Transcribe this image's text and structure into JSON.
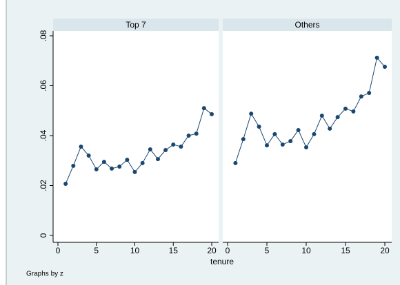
{
  "chart_data": [
    {
      "type": "line",
      "title": "Top 7",
      "color": "#1a476f",
      "x": [
        1,
        2,
        3,
        4,
        5,
        6,
        7,
        8,
        9,
        10,
        11,
        12,
        13,
        14,
        15,
        16,
        17,
        18,
        19,
        20
      ],
      "values": [
        0.0207,
        0.0279,
        0.0356,
        0.032,
        0.0265,
        0.0295,
        0.0268,
        0.0276,
        0.0303,
        0.0254,
        0.029,
        0.0345,
        0.0306,
        0.0342,
        0.0364,
        0.0356,
        0.04,
        0.0408,
        0.051,
        0.0486
      ],
      "xlim": [
        0,
        20
      ],
      "xticks": [
        0,
        5,
        10,
        15,
        20
      ],
      "ylim": [
        0,
        0.08
      ],
      "yticks": [
        0,
        {
          "value": 0.02,
          "label": ".02"
        },
        {
          "value": 0.04,
          "label": ".04"
        },
        {
          "value": 0.06,
          "label": ".06"
        },
        {
          "value": 0.08,
          "label": ".08"
        }
      ]
    },
    {
      "type": "line",
      "title": "Others",
      "color": "#1a476f",
      "x": [
        1,
        2,
        3,
        4,
        5,
        6,
        7,
        8,
        9,
        10,
        11,
        12,
        13,
        14,
        15,
        16,
        17,
        18,
        19,
        20
      ],
      "values": [
        0.029,
        0.0386,
        0.0488,
        0.0436,
        0.0361,
        0.0406,
        0.0364,
        0.0378,
        0.0422,
        0.0353,
        0.0406,
        0.048,
        0.0428,
        0.0474,
        0.0508,
        0.0497,
        0.0557,
        0.0571,
        0.0712,
        0.0676
      ],
      "xlim": [
        0,
        20
      ],
      "xticks": [
        0,
        5,
        10,
        15,
        20
      ],
      "ylim": [
        0,
        0.08
      ]
    }
  ],
  "x_label": "tenure",
  "note": "Graphs by z"
}
